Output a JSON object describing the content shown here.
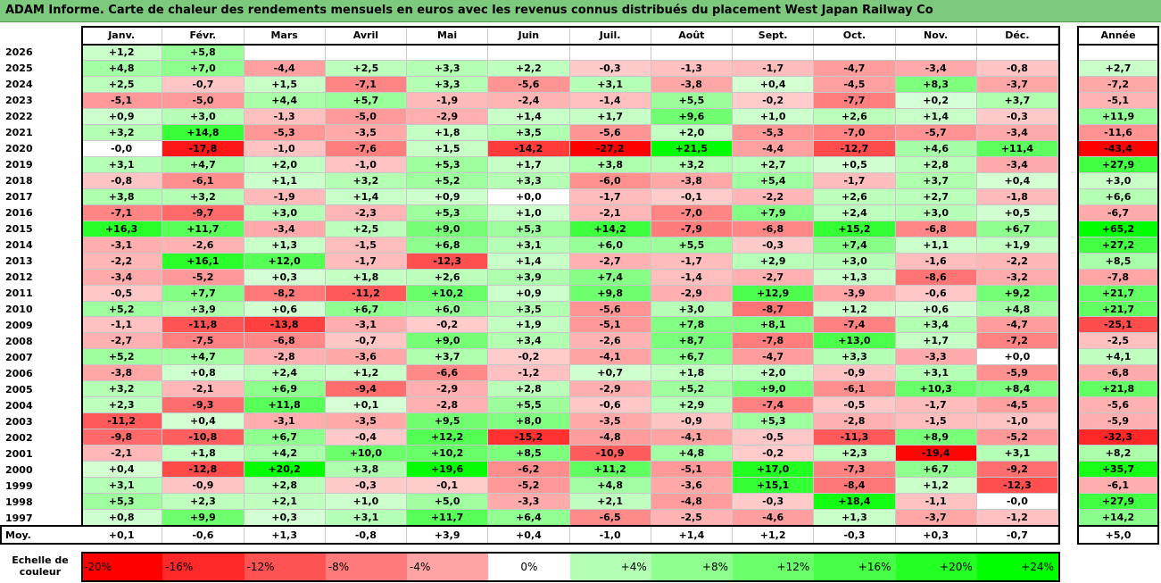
{
  "title": "ADAM Informe. Carte de chaleur des rendements mensuels en euros avec les revenus connus distribués du placement West Japan Railway Co",
  "year_header": "Année",
  "avg_label": "Moy.",
  "legend_title": "Echelle de couleur",
  "colors": {
    "negative_max": "#ff0000",
    "positive_max": "#00ff00",
    "neutral": "#ffffff"
  },
  "chart_data": {
    "type": "heatmap",
    "title": "ADAM Informe. Carte de chaleur des rendements mensuels en euros avec les revenus connus distribués du placement West Japan Railway Co",
    "months": [
      "Janv.",
      "Févr.",
      "Mars",
      "Avril",
      "Mai",
      "Juin",
      "Juil.",
      "Août",
      "Sept.",
      "Oct.",
      "Nov.",
      "Déc."
    ],
    "rows": [
      {
        "year": "2026",
        "values": [
          "+1,2",
          "+5,8",
          "",
          "",
          "",
          "",
          "",
          "",
          "",
          "",
          "",
          ""
        ],
        "annual": ""
      },
      {
        "year": "2025",
        "values": [
          "+4,8",
          "+7,0",
          "-4,4",
          "+2,5",
          "+3,3",
          "+2,2",
          "-0,3",
          "-1,3",
          "-1,7",
          "-4,7",
          "-3,4",
          "-0,8"
        ],
        "annual": "+2,7"
      },
      {
        "year": "2024",
        "values": [
          "+2,5",
          "-0,7",
          "+1,5",
          "-7,1",
          "+3,3",
          "-5,6",
          "+3,1",
          "-3,8",
          "+0,4",
          "-4,5",
          "+8,3",
          "-3,7"
        ],
        "annual": "-7,2"
      },
      {
        "year": "2023",
        "values": [
          "-5,1",
          "-5,0",
          "+4,4",
          "+5,7",
          "-1,9",
          "-2,4",
          "-1,4",
          "+5,5",
          "-0,2",
          "-7,7",
          "+0,2",
          "+3,7"
        ],
        "annual": "-5,1"
      },
      {
        "year": "2022",
        "values": [
          "+0,9",
          "+3,0",
          "-1,3",
          "-5,0",
          "-2,9",
          "+1,4",
          "+1,7",
          "+9,6",
          "+1,0",
          "+2,6",
          "+1,4",
          "-0,3"
        ],
        "annual": "+11,9"
      },
      {
        "year": "2021",
        "values": [
          "+3,2",
          "+14,8",
          "-5,3",
          "-3,5",
          "+1,8",
          "+3,5",
          "-5,6",
          "+2,0",
          "-5,3",
          "-7,0",
          "-5,7",
          "-3,4"
        ],
        "annual": "-11,6"
      },
      {
        "year": "2020",
        "values": [
          "-0,0",
          "-17,8",
          "-1,0",
          "-7,6",
          "+1,5",
          "-14,2",
          "-27,2",
          "+21,5",
          "-4,4",
          "-12,7",
          "+4,6",
          "+11,4"
        ],
        "annual": "-43,4"
      },
      {
        "year": "2019",
        "values": [
          "+3,1",
          "+4,7",
          "+2,0",
          "-1,0",
          "+5,3",
          "+1,7",
          "+3,8",
          "+3,2",
          "+2,7",
          "+0,5",
          "+2,8",
          "-3,4"
        ],
        "annual": "+27,9"
      },
      {
        "year": "2018",
        "values": [
          "-0,8",
          "-6,1",
          "+1,1",
          "+3,2",
          "+5,2",
          "+3,3",
          "-6,0",
          "-3,8",
          "+5,4",
          "-1,7",
          "+3,7",
          "+0,4"
        ],
        "annual": "+3,0"
      },
      {
        "year": "2017",
        "values": [
          "+3,8",
          "+3,2",
          "-1,9",
          "+1,4",
          "+0,9",
          "+0,0",
          "-1,7",
          "-0,1",
          "-2,2",
          "+2,6",
          "+2,7",
          "-1,8"
        ],
        "annual": "+6,6"
      },
      {
        "year": "2016",
        "values": [
          "-7,1",
          "-9,7",
          "+3,0",
          "-2,3",
          "+5,3",
          "+1,0",
          "-2,1",
          "-7,0",
          "+7,9",
          "+2,4",
          "+3,0",
          "+0,5"
        ],
        "annual": "-6,7"
      },
      {
        "year": "2015",
        "values": [
          "+16,3",
          "+11,7",
          "-3,4",
          "+2,5",
          "+9,0",
          "+5,3",
          "+14,2",
          "-7,9",
          "-6,8",
          "+15,2",
          "-6,8",
          "+6,7"
        ],
        "annual": "+65,2"
      },
      {
        "year": "2014",
        "values": [
          "-3,1",
          "-2,6",
          "+1,3",
          "-1,5",
          "+6,8",
          "+3,1",
          "+6,0",
          "+5,5",
          "-0,3",
          "+7,4",
          "+1,1",
          "+1,9"
        ],
        "annual": "+27,2"
      },
      {
        "year": "2013",
        "values": [
          "-2,2",
          "+16,1",
          "+12,0",
          "-1,7",
          "-12,3",
          "+1,4",
          "-2,7",
          "-1,7",
          "+2,9",
          "+3,0",
          "-1,6",
          "-2,2"
        ],
        "annual": "+8,5"
      },
      {
        "year": "2012",
        "values": [
          "-3,4",
          "-5,2",
          "+0,3",
          "+1,8",
          "+2,6",
          "+3,9",
          "+7,4",
          "-1,4",
          "-2,7",
          "+1,3",
          "-8,6",
          "-3,2"
        ],
        "annual": "-7,8"
      },
      {
        "year": "2011",
        "values": [
          "-0,5",
          "+7,7",
          "-8,2",
          "-11,2",
          "+10,2",
          "+0,9",
          "+9,8",
          "-2,9",
          "+12,9",
          "-3,9",
          "-0,6",
          "+9,2"
        ],
        "annual": "+21,7"
      },
      {
        "year": "2010",
        "values": [
          "+5,2",
          "+3,9",
          "+0,6",
          "+6,7",
          "+6,0",
          "+3,5",
          "-5,6",
          "+3,0",
          "-8,7",
          "+1,2",
          "+0,6",
          "+4,8"
        ],
        "annual": "+21,7"
      },
      {
        "year": "2009",
        "values": [
          "-1,1",
          "-11,8",
          "-13,8",
          "-3,1",
          "-0,2",
          "+1,9",
          "-5,1",
          "+7,8",
          "+8,1",
          "-7,4",
          "+3,4",
          "-4,7"
        ],
        "annual": "-25,1"
      },
      {
        "year": "2008",
        "values": [
          "-2,7",
          "-7,5",
          "-6,8",
          "-0,7",
          "+9,0",
          "+3,4",
          "-2,6",
          "+8,7",
          "-7,8",
          "+13,0",
          "+1,7",
          "-7,2"
        ],
        "annual": "-2,5"
      },
      {
        "year": "2007",
        "values": [
          "+5,2",
          "+4,7",
          "-2,8",
          "-3,6",
          "+3,7",
          "-0,2",
          "-4,1",
          "+6,7",
          "-4,7",
          "+3,3",
          "-3,3",
          "+0,0"
        ],
        "annual": "+4,1"
      },
      {
        "year": "2006",
        "values": [
          "-3,8",
          "+0,8",
          "+2,4",
          "+1,2",
          "-6,6",
          "-1,2",
          "+0,7",
          "+1,8",
          "+2,0",
          "-0,9",
          "+3,1",
          "-5,9"
        ],
        "annual": "-6,8"
      },
      {
        "year": "2005",
        "values": [
          "+3,2",
          "-2,1",
          "+6,9",
          "-9,4",
          "-2,9",
          "+2,8",
          "-2,9",
          "+5,2",
          "+9,0",
          "-6,1",
          "+10,3",
          "+8,4"
        ],
        "annual": "+21,8"
      },
      {
        "year": "2004",
        "values": [
          "+2,3",
          "-9,3",
          "+11,8",
          "+0,1",
          "-2,8",
          "+5,5",
          "-0,6",
          "+2,9",
          "-7,4",
          "-0,5",
          "-1,7",
          "-4,5"
        ],
        "annual": "-5,6"
      },
      {
        "year": "2003",
        "values": [
          "-11,2",
          "+0,4",
          "-3,1",
          "-3,5",
          "+9,5",
          "+8,0",
          "-3,5",
          "-0,9",
          "+5,3",
          "-2,8",
          "-1,5",
          "-1,0"
        ],
        "annual": "-5,9"
      },
      {
        "year": "2002",
        "values": [
          "-9,8",
          "-10,8",
          "+6,7",
          "-0,4",
          "+12,2",
          "-15,2",
          "-4,8",
          "-4,1",
          "-0,5",
          "-11,3",
          "+8,9",
          "-5,2"
        ],
        "annual": "-32,3"
      },
      {
        "year": "2001",
        "values": [
          "-2,1",
          "+1,8",
          "+4,2",
          "+10,0",
          "+10,2",
          "+8,5",
          "-10,9",
          "+4,8",
          "-0,2",
          "+2,3",
          "-19,4",
          "+3,1"
        ],
        "annual": "+8,2"
      },
      {
        "year": "2000",
        "values": [
          "+0,4",
          "-12,8",
          "+20,2",
          "+3,8",
          "+19,6",
          "-6,2",
          "+11,2",
          "-5,1",
          "+17,0",
          "-7,3",
          "+6,7",
          "-9,2"
        ],
        "annual": "+35,7"
      },
      {
        "year": "1999",
        "values": [
          "+3,1",
          "-0,9",
          "+2,8",
          "-0,3",
          "-0,1",
          "-5,2",
          "+4,8",
          "-3,6",
          "+15,1",
          "-8,4",
          "+1,2",
          "-12,3"
        ],
        "annual": "-6,1"
      },
      {
        "year": "1998",
        "values": [
          "+5,3",
          "+2,3",
          "+2,1",
          "+1,0",
          "+5,0",
          "-3,3",
          "+2,1",
          "-4,8",
          "-0,3",
          "+18,4",
          "-1,1",
          "-0,0"
        ],
        "annual": "+27,9"
      },
      {
        "year": "1997",
        "values": [
          "+0,8",
          "+9,9",
          "+0,3",
          "+3,1",
          "+11,7",
          "+6,4",
          "-6,5",
          "-2,5",
          "-4,6",
          "+1,3",
          "-3,7",
          "-1,2"
        ],
        "annual": "+14,2"
      }
    ],
    "averages": [
      "+0,1",
      "-0,6",
      "+1,3",
      "-0,8",
      "+3,9",
      "+0,4",
      "-1,0",
      "+1,4",
      "+1,2",
      "-0,3",
      "+0,3",
      "-0,7"
    ],
    "annual_average": "+5,0",
    "legend": [
      {
        "label": "-20%",
        "value": -20
      },
      {
        "label": "-16%",
        "value": -16
      },
      {
        "label": "-12%",
        "value": -12
      },
      {
        "label": "-8%",
        "value": -8
      },
      {
        "label": "-4%",
        "value": -4
      },
      {
        "label": "0%",
        "value": 0
      },
      {
        "label": "+4%",
        "value": 4
      },
      {
        "label": "+8%",
        "value": 8
      },
      {
        "label": "+12%",
        "value": 12
      },
      {
        "label": "+16%",
        "value": 16
      },
      {
        "label": "+20%",
        "value": 20
      },
      {
        "label": "+24%",
        "value": 24
      }
    ]
  }
}
